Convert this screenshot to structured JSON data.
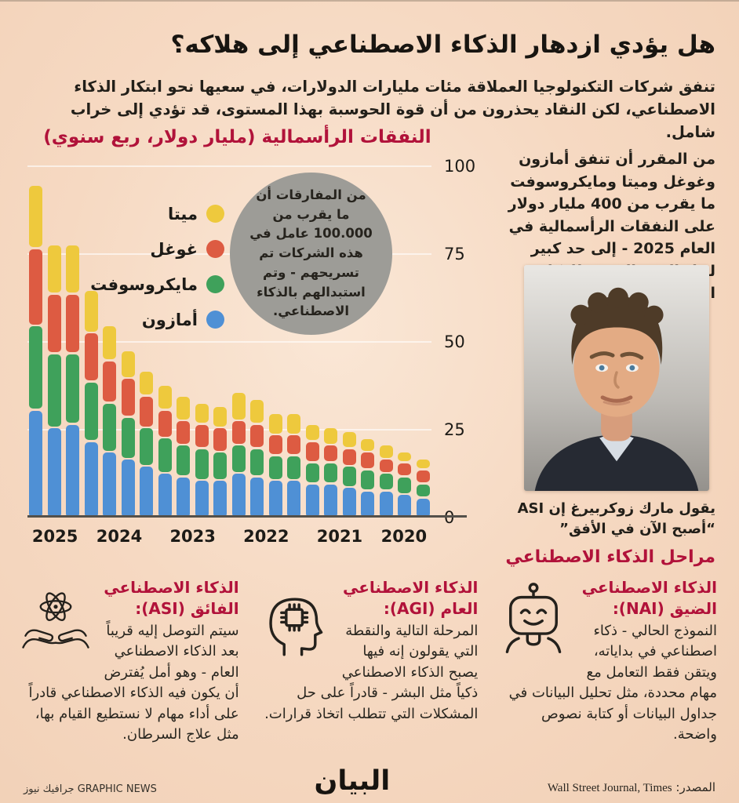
{
  "header": {
    "title": "هل يؤدي ازدهار الذكاء الاصطناعي إلى هلاكه؟",
    "intro": "تنفق شركات التكنولوجيا العملاقة مئات مليارات الدولارات، في سعيها نحو ابتكار الذكاء الاصطناعي، لكن النقاد يحذرون من أن قوة الحوسبة بهذا المستوى، قد تؤدي إلى خراب شامل."
  },
  "chart_data": {
    "type": "bar",
    "stacked": true,
    "title": "النفقات الرأسمالية (مليار دولار، ربع سنوي)",
    "ylabel": "مليار دولار",
    "ylim": [
      0,
      100
    ],
    "yticks": [
      0,
      25,
      50,
      75,
      100
    ],
    "grid": true,
    "legend_position": "upper-left-inside",
    "x_note": "أرباع سنوية معروضة من 2025 (يسار) إلى 2020 (يمين)",
    "year_labels": [
      "2025",
      "2024",
      "2023",
      "2022",
      "2021",
      "2020"
    ],
    "year_group_sizes": [
      3,
      4,
      4,
      4,
      4,
      3
    ],
    "series": [
      {
        "name": "أمازون",
        "color": "#4f90d5",
        "values": [
          31,
          26,
          27,
          22,
          19,
          17,
          15,
          13,
          12,
          11,
          11,
          13,
          12,
          11,
          11,
          10,
          10,
          9,
          8,
          8,
          7,
          6
        ]
      },
      {
        "name": "مايكروسوفت",
        "color": "#3fa15b",
        "values": [
          24,
          21,
          20,
          17,
          14,
          12,
          11,
          10,
          9,
          9,
          8,
          8,
          8,
          7,
          7,
          6,
          6,
          6,
          6,
          5,
          5,
          4
        ]
      },
      {
        "name": "غوغل",
        "color": "#dd5b42",
        "values": [
          22,
          17,
          17,
          14,
          12,
          11,
          9,
          8,
          7,
          7,
          7,
          7,
          7,
          6,
          6,
          6,
          5,
          5,
          5,
          4,
          4,
          4
        ]
      },
      {
        "name": "ميتا",
        "color": "#eec93d",
        "values": [
          18,
          14,
          14,
          12,
          10,
          8,
          7,
          7,
          7,
          6,
          6,
          8,
          7,
          6,
          6,
          5,
          5,
          5,
          4,
          4,
          3,
          3
        ]
      }
    ],
    "legend_order_top_to_bottom": [
      "ميتا",
      "غوغل",
      "مايكروسوفت",
      "أمازون"
    ]
  },
  "callout": {
    "text": "من المفارقات أن ما يقرب من 100.000 عامل في هذه الشركات تم تسريحهم - وتم استبدالهم بالذكاء الاصطناعي."
  },
  "aside": {
    "paragraph": "من المقرر أن تنفق أمازون وغوغل وميتا ومايكروسوفت ما يقرب من 400 مليار دولار على النفقات الرأسمالية في العام 2025 - إلى حد كبير لبناء البنية التحتية للذكاء الاصطناعي.",
    "photo_caption_line1": "يقول مارك زوكربيرغ إن ASI",
    "photo_caption_line2": "“أصبح الآن في الأفق”"
  },
  "stages_section": {
    "heading": "مراحل الذكاء الاصطناعي",
    "stages": [
      {
        "title": "الذكاء الاصطناعي الضيق (NAI):",
        "body": "النموذج الحالي - ذكاء اصطناعي في بداياته، ويتقن فقط التعامل مع مهام محددة، مثل تحليل البيانات في جداول البيانات أو كتابة نصوص واضحة.",
        "icon": "robot-icon"
      },
      {
        "title": "الذكاء الاصطناعي العام (AGI):",
        "body": "المرحلة التالية والنقطة التي يقولون إنه فيها يصبح الذكاء الاصطناعي ذكياً مثل البشر - قادراً على حل المشكلات التي تتطلب اتخاذ قرارات.",
        "icon": "head-chip-icon"
      },
      {
        "title": "الذكاء الاصطناعي الفائق (ASI):",
        "body": "سيتم التوصل إليه قريباً بعد الذكاء الاصطناعي العام - وهو أمل يُفترض أن يكون فيه الذكاء الاصطناعي قادراً على أداء مهام لا نستطيع القيام بها، مثل علاج السرطان.",
        "icon": "atom-hands-icon"
      }
    ]
  },
  "footer": {
    "credit": "جرافيك نيوز GRAPHIC NEWS",
    "logo": "البيان",
    "source_label": "المصدر:",
    "source": "Wall Street Journal, Times"
  },
  "colors": {
    "background": "#f6d7bf",
    "accent_red": "#b1123a",
    "meta_yellow": "#eec93d",
    "google_red": "#dd5b42",
    "microsoft_green": "#3fa15b",
    "amazon_blue": "#4f90d5",
    "callout_gray": "#9d9c97"
  }
}
